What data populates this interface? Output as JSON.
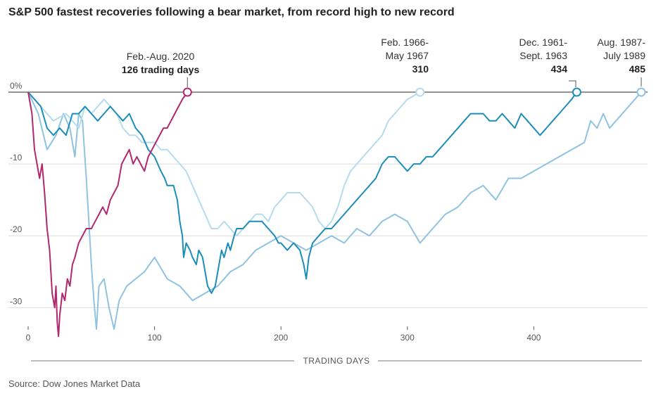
{
  "chart_data": {
    "type": "line",
    "title": "S&P 500 fastest recoveries following a bear market, from record high to new record",
    "source": "Source: Dow Jones Market Data",
    "xlabel": "TRADING DAYS",
    "ylabel": "",
    "xlim": [
      0,
      490
    ],
    "ylim": [
      -33,
      0
    ],
    "x_ticks": [
      0,
      100,
      200,
      300,
      400
    ],
    "y_ticks": [
      {
        "value": 0,
        "label": "0%"
      },
      {
        "value": -10,
        "label": "-10"
      },
      {
        "value": -20,
        "label": "-20"
      },
      {
        "value": -30,
        "label": "-30"
      }
    ],
    "series": [
      {
        "name": "Aug. 1987-July 1989",
        "label_lines": [
          "Aug. 1987-",
          "July 1989"
        ],
        "days_label": "485",
        "color": "#8fc3e0",
        "end_day": 485,
        "points": [
          [
            0,
            0
          ],
          [
            8,
            -3
          ],
          [
            15,
            -8
          ],
          [
            22,
            -6
          ],
          [
            28,
            -3
          ],
          [
            33,
            -5
          ],
          [
            37,
            -9
          ],
          [
            40,
            -3
          ],
          [
            43,
            -4
          ],
          [
            46,
            -12
          ],
          [
            48,
            -18
          ],
          [
            50,
            -24
          ],
          [
            52,
            -29
          ],
          [
            54,
            -33
          ],
          [
            56,
            -27
          ],
          [
            60,
            -26
          ],
          [
            64,
            -30
          ],
          [
            68,
            -33
          ],
          [
            72,
            -29
          ],
          [
            78,
            -27
          ],
          [
            85,
            -26
          ],
          [
            92,
            -25
          ],
          [
            100,
            -23
          ],
          [
            110,
            -26
          ],
          [
            120,
            -27
          ],
          [
            130,
            -29
          ],
          [
            140,
            -28
          ],
          [
            150,
            -27
          ],
          [
            160,
            -25
          ],
          [
            170,
            -24
          ],
          [
            180,
            -22
          ],
          [
            190,
            -21
          ],
          [
            200,
            -20
          ],
          [
            210,
            -21
          ],
          [
            220,
            -22
          ],
          [
            230,
            -21
          ],
          [
            240,
            -20
          ],
          [
            250,
            -21
          ],
          [
            260,
            -19
          ],
          [
            270,
            -20
          ],
          [
            280,
            -18
          ],
          [
            290,
            -17
          ],
          [
            300,
            -18
          ],
          [
            310,
            -21
          ],
          [
            320,
            -19
          ],
          [
            330,
            -17
          ],
          [
            340,
            -16
          ],
          [
            350,
            -14
          ],
          [
            360,
            -13
          ],
          [
            370,
            -15
          ],
          [
            380,
            -12
          ],
          [
            390,
            -12
          ],
          [
            400,
            -11
          ],
          [
            410,
            -10
          ],
          [
            420,
            -9
          ],
          [
            430,
            -8
          ],
          [
            440,
            -7
          ],
          [
            445,
            -4
          ],
          [
            450,
            -5
          ],
          [
            455,
            -3
          ],
          [
            460,
            -5
          ],
          [
            465,
            -4
          ],
          [
            470,
            -3
          ],
          [
            475,
            -2
          ],
          [
            480,
            -1
          ],
          [
            485,
            0
          ]
        ]
      },
      {
        "name": "Feb. 1966-May 1967",
        "label_lines": [
          "Feb. 1966-",
          "May 1967"
        ],
        "days_label": "310",
        "color": "#b5dced",
        "end_day": 310,
        "points": [
          [
            0,
            0
          ],
          [
            10,
            -2
          ],
          [
            20,
            -4
          ],
          [
            30,
            -3
          ],
          [
            40,
            -5
          ],
          [
            45,
            -2
          ],
          [
            50,
            -3
          ],
          [
            55,
            -2
          ],
          [
            60,
            -1
          ],
          [
            65,
            -2
          ],
          [
            70,
            -3
          ],
          [
            75,
            -5
          ],
          [
            80,
            -6
          ],
          [
            85,
            -6
          ],
          [
            90,
            -7
          ],
          [
            95,
            -7
          ],
          [
            100,
            -7
          ],
          [
            105,
            -8
          ],
          [
            110,
            -8
          ],
          [
            115,
            -9
          ],
          [
            120,
            -10
          ],
          [
            125,
            -11
          ],
          [
            130,
            -13
          ],
          [
            135,
            -15
          ],
          [
            140,
            -17
          ],
          [
            145,
            -19
          ],
          [
            150,
            -19
          ],
          [
            155,
            -18
          ],
          [
            160,
            -19
          ],
          [
            165,
            -20
          ],
          [
            170,
            -19
          ],
          [
            175,
            -18
          ],
          [
            180,
            -17
          ],
          [
            185,
            -17
          ],
          [
            190,
            -18
          ],
          [
            195,
            -16
          ],
          [
            200,
            -15
          ],
          [
            205,
            -14
          ],
          [
            210,
            -14
          ],
          [
            215,
            -14
          ],
          [
            220,
            -15
          ],
          [
            225,
            -16
          ],
          [
            230,
            -18
          ],
          [
            235,
            -19
          ],
          [
            240,
            -18
          ],
          [
            245,
            -16
          ],
          [
            250,
            -13
          ],
          [
            255,
            -11
          ],
          [
            260,
            -10
          ],
          [
            265,
            -9
          ],
          [
            270,
            -8
          ],
          [
            275,
            -7
          ],
          [
            280,
            -6
          ],
          [
            285,
            -4
          ],
          [
            290,
            -3
          ],
          [
            295,
            -2
          ],
          [
            300,
            -1
          ],
          [
            305,
            -0.5
          ],
          [
            310,
            0
          ]
        ]
      },
      {
        "name": "Dec. 1961-Sept. 1963",
        "label_lines": [
          "Dec. 1961-",
          "Sept. 1963"
        ],
        "days_label": "434",
        "color": "#1b8db8",
        "end_day": 434,
        "points": [
          [
            0,
            0
          ],
          [
            10,
            -2
          ],
          [
            15,
            -5
          ],
          [
            20,
            -6
          ],
          [
            25,
            -5
          ],
          [
            30,
            -6
          ],
          [
            35,
            -3
          ],
          [
            40,
            -3
          ],
          [
            45,
            -2
          ],
          [
            50,
            -3
          ],
          [
            55,
            -4
          ],
          [
            60,
            -3
          ],
          [
            65,
            -2
          ],
          [
            70,
            -3
          ],
          [
            75,
            -4
          ],
          [
            80,
            -3
          ],
          [
            85,
            -5
          ],
          [
            90,
            -6
          ],
          [
            95,
            -8
          ],
          [
            100,
            -9
          ],
          [
            105,
            -11
          ],
          [
            108,
            -12
          ],
          [
            110,
            -13
          ],
          [
            115,
            -13
          ],
          [
            118,
            -15
          ],
          [
            120,
            -18
          ],
          [
            122,
            -20
          ],
          [
            123,
            -23
          ],
          [
            125,
            -21
          ],
          [
            128,
            -22
          ],
          [
            130,
            -23
          ],
          [
            133,
            -24
          ],
          [
            135,
            -22
          ],
          [
            138,
            -23
          ],
          [
            140,
            -25
          ],
          [
            142,
            -27
          ],
          [
            145,
            -28
          ],
          [
            148,
            -27
          ],
          [
            150,
            -25
          ],
          [
            153,
            -22
          ],
          [
            155,
            -23
          ],
          [
            158,
            -21
          ],
          [
            160,
            -22
          ],
          [
            163,
            -20
          ],
          [
            165,
            -19
          ],
          [
            170,
            -19
          ],
          [
            175,
            -18
          ],
          [
            180,
            -18
          ],
          [
            185,
            -18
          ],
          [
            190,
            -19
          ],
          [
            195,
            -20
          ],
          [
            198,
            -21
          ],
          [
            200,
            -21
          ],
          [
            205,
            -22
          ],
          [
            210,
            -21
          ],
          [
            215,
            -22
          ],
          [
            218,
            -24
          ],
          [
            220,
            -26
          ],
          [
            222,
            -23
          ],
          [
            225,
            -21
          ],
          [
            230,
            -20
          ],
          [
            235,
            -19
          ],
          [
            240,
            -19
          ],
          [
            245,
            -18
          ],
          [
            250,
            -17
          ],
          [
            255,
            -16
          ],
          [
            260,
            -15
          ],
          [
            265,
            -14
          ],
          [
            270,
            -13
          ],
          [
            275,
            -12
          ],
          [
            280,
            -10
          ],
          [
            285,
            -9
          ],
          [
            290,
            -9
          ],
          [
            295,
            -10
          ],
          [
            300,
            -11
          ],
          [
            305,
            -10
          ],
          [
            310,
            -10
          ],
          [
            315,
            -9
          ],
          [
            320,
            -9
          ],
          [
            325,
            -8
          ],
          [
            330,
            -7
          ],
          [
            335,
            -6
          ],
          [
            340,
            -5
          ],
          [
            345,
            -4
          ],
          [
            350,
            -3
          ],
          [
            355,
            -3
          ],
          [
            360,
            -3
          ],
          [
            365,
            -4
          ],
          [
            370,
            -4
          ],
          [
            375,
            -3
          ],
          [
            380,
            -4
          ],
          [
            385,
            -5
          ],
          [
            390,
            -3
          ],
          [
            395,
            -4
          ],
          [
            400,
            -5
          ],
          [
            405,
            -6
          ],
          [
            410,
            -5
          ],
          [
            415,
            -4
          ],
          [
            420,
            -3
          ],
          [
            425,
            -2
          ],
          [
            430,
            -1
          ],
          [
            434,
            0
          ]
        ]
      },
      {
        "name": "Feb.-Aug. 2020",
        "label_lines": [
          "Feb.-Aug. 2020"
        ],
        "days_label": "126 trading days",
        "color": "#b0296f",
        "end_day": 126,
        "points": [
          [
            0,
            0
          ],
          [
            3,
            -3
          ],
          [
            5,
            -8
          ],
          [
            7,
            -10
          ],
          [
            9,
            -12
          ],
          [
            11,
            -10
          ],
          [
            13,
            -14
          ],
          [
            15,
            -19
          ],
          [
            17,
            -22
          ],
          [
            19,
            -28
          ],
          [
            21,
            -30
          ],
          [
            22,
            -27
          ],
          [
            23,
            -32
          ],
          [
            24,
            -34
          ],
          [
            25,
            -31
          ],
          [
            27,
            -28
          ],
          [
            29,
            -29
          ],
          [
            31,
            -26
          ],
          [
            33,
            -27
          ],
          [
            35,
            -24
          ],
          [
            37,
            -23
          ],
          [
            40,
            -21
          ],
          [
            43,
            -20
          ],
          [
            46,
            -19
          ],
          [
            50,
            -19
          ],
          [
            53,
            -18
          ],
          [
            56,
            -17
          ],
          [
            59,
            -16
          ],
          [
            62,
            -17
          ],
          [
            65,
            -15
          ],
          [
            68,
            -14
          ],
          [
            71,
            -13
          ],
          [
            74,
            -10
          ],
          [
            77,
            -9
          ],
          [
            80,
            -8
          ],
          [
            83,
            -10
          ],
          [
            86,
            -9
          ],
          [
            89,
            -10
          ],
          [
            92,
            -11
          ],
          [
            95,
            -9
          ],
          [
            98,
            -8
          ],
          [
            101,
            -7
          ],
          [
            104,
            -6
          ],
          [
            107,
            -5
          ],
          [
            110,
            -5
          ],
          [
            113,
            -4
          ],
          [
            116,
            -3
          ],
          [
            119,
            -2
          ],
          [
            122,
            -1
          ],
          [
            126,
            0
          ]
        ]
      }
    ]
  }
}
